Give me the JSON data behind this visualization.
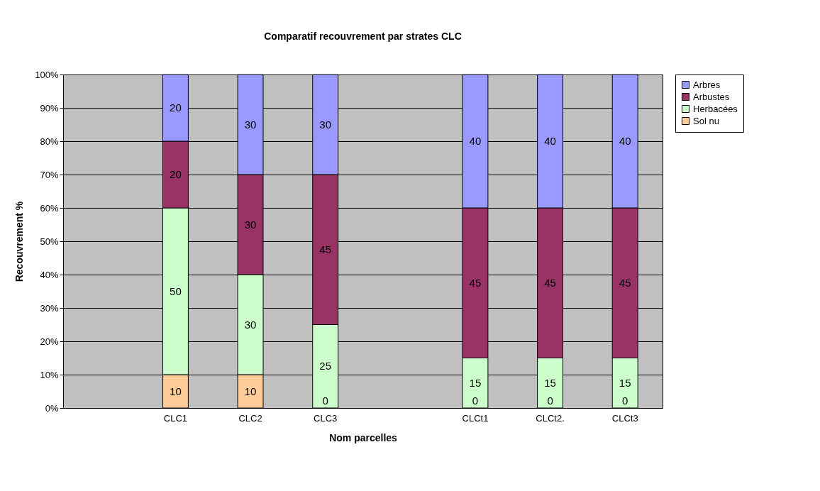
{
  "chart_data": {
    "type": "bar",
    "stacked": true,
    "title": "Comparatif recouvrement par strates CLC",
    "xlabel": "Nom parcelles",
    "ylabel": "Recouvrement %",
    "categories": [
      null,
      "CLC1",
      "CLC2",
      "CLC3",
      null,
      "CLCt1",
      "CLCt2.",
      "CLCt3"
    ],
    "series": [
      {
        "name": "Sol nu",
        "color": "#ffcc99",
        "values": [
          null,
          10,
          10,
          0,
          null,
          0,
          0,
          0
        ],
        "value_labels": [
          null,
          "10",
          "10",
          null,
          null,
          null,
          null,
          null
        ]
      },
      {
        "name": "Herbacées",
        "color": "#ccffcc",
        "values": [
          null,
          50,
          30,
          25,
          null,
          15,
          15,
          15
        ],
        "value_labels": [
          null,
          "50",
          "30",
          "25",
          null,
          "15",
          "15",
          "15"
        ]
      },
      {
        "name": "Arbustes",
        "color": "#993366",
        "values": [
          null,
          20,
          30,
          45,
          null,
          45,
          45,
          45
        ],
        "value_labels": [
          null,
          "20",
          "30",
          "45",
          null,
          "45",
          "45",
          "45"
        ]
      },
      {
        "name": "Arbres",
        "color": "#9999ff",
        "values": [
          null,
          20,
          30,
          30,
          null,
          40,
          40,
          40
        ],
        "value_labels": [
          null,
          "20",
          "30",
          "30",
          null,
          "40",
          "40",
          "40"
        ]
      }
    ],
    "annotations": [
      {
        "text": "0",
        "x": "CLC3",
        "y": 0
      },
      {
        "text": "0",
        "x": "CLCt1",
        "y": 0
      },
      {
        "text": "0",
        "x": "CLCt2.",
        "y": 0
      },
      {
        "text": "0",
        "x": "CLCt3",
        "y": 0
      }
    ],
    "ylim": [
      0,
      100
    ],
    "yticks": [
      {
        "value": 0,
        "label": "0%"
      },
      {
        "value": 10,
        "label": "10%"
      },
      {
        "value": 20,
        "label": "20%"
      },
      {
        "value": 30,
        "label": "30%"
      },
      {
        "value": 40,
        "label": "40%"
      },
      {
        "value": 50,
        "label": "50%"
      },
      {
        "value": 60,
        "label": "60%"
      },
      {
        "value": 70,
        "label": "70%"
      },
      {
        "value": 80,
        "label": "80%"
      },
      {
        "value": 90,
        "label": "90%"
      },
      {
        "value": 100,
        "label": "100%"
      }
    ],
    "grid": "y",
    "legend": "right"
  }
}
